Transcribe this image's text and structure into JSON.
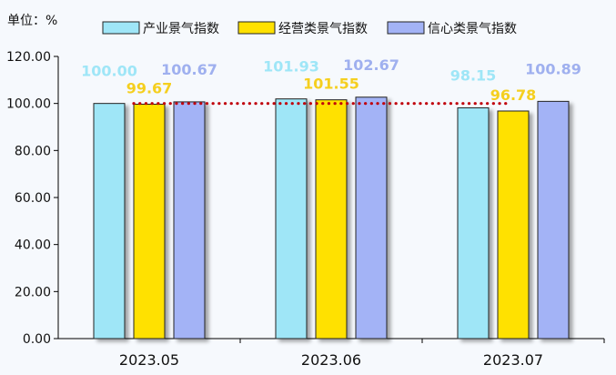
{
  "unit_label": "单位：%",
  "chart_data": {
    "type": "bar",
    "categories": [
      "2023.05",
      "2023.06",
      "2023.07"
    ],
    "series": [
      {
        "name": "产业景气指数",
        "values": [
          100.0,
          101.93,
          98.15
        ],
        "color": "#9fe6f7",
        "label_color": "#9fe6f7"
      },
      {
        "name": "经营类景气指数",
        "values": [
          99.67,
          101.55,
          96.78
        ],
        "color": "#ffe100",
        "label_color": "#f5cf1f"
      },
      {
        "name": "信心类景气指数",
        "values": [
          100.67,
          102.67,
          100.89
        ],
        "color": "#a3b3f6",
        "label_color": "#9fb0ef"
      }
    ],
    "value_labels": [
      [
        "100.00",
        "101.93",
        "98.15"
      ],
      [
        "99.67",
        "101.55",
        "96.78"
      ],
      [
        "100.67",
        "102.67",
        "100.89"
      ]
    ],
    "ylim": [
      0,
      120
    ],
    "yticks": [
      "0.00",
      "20.00",
      "40.00",
      "60.00",
      "80.00",
      "100.00",
      "120.00"
    ],
    "reference_line": {
      "value": 100,
      "color": "#c0000b",
      "style": "dotted"
    },
    "legend_position": "top",
    "grid": false
  }
}
